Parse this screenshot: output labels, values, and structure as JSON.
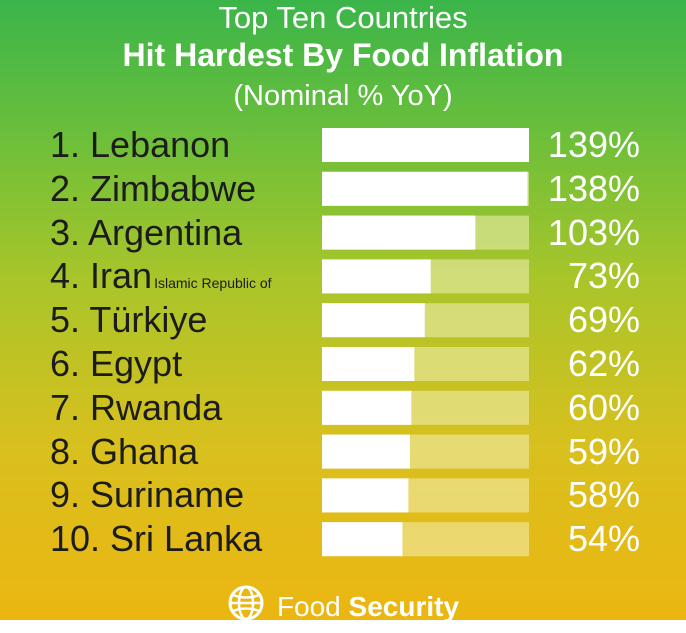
{
  "header": {
    "title_line1": "Top Ten Countries",
    "title_line2": "Hit Hardest By Food Inflation",
    "title_line3": "(Nominal % YoY)"
  },
  "footer": {
    "brand_light": "Food",
    "brand_bold": "Security",
    "icon": "globe-icon"
  },
  "colors": {
    "bar_fill": "#ffffff",
    "bar_track": "#f3f1b8",
    "label_text": "#1c1c1c",
    "value_text": "#ffffff"
  },
  "chart_data": {
    "type": "bar",
    "orientation": "horizontal",
    "title": "Top Ten Countries Hit Hardest By Food Inflation",
    "subtitle": "(Nominal % YoY)",
    "categories": [
      "1. Lebanon",
      "2. Zimbabwe",
      "3. Argentina",
      "4. Iran",
      "5. Türkiye",
      "6. Egypt",
      "7. Rwanda",
      "8. Ghana",
      "9. Suriname",
      "10. Sri Lanka"
    ],
    "category_notes": [
      "",
      "",
      "",
      "Islamic Republic of",
      "",
      "",
      "",
      "",
      "",
      ""
    ],
    "values": [
      139,
      138,
      103,
      73,
      69,
      62,
      60,
      59,
      58,
      54
    ],
    "value_labels": [
      "139%",
      "138%",
      "103%",
      "73%",
      "69%",
      "62%",
      "60%",
      "59%",
      "58%",
      "54%"
    ],
    "xlim": [
      0,
      139
    ],
    "unit": "%",
    "grid": false,
    "legend": "none"
  }
}
